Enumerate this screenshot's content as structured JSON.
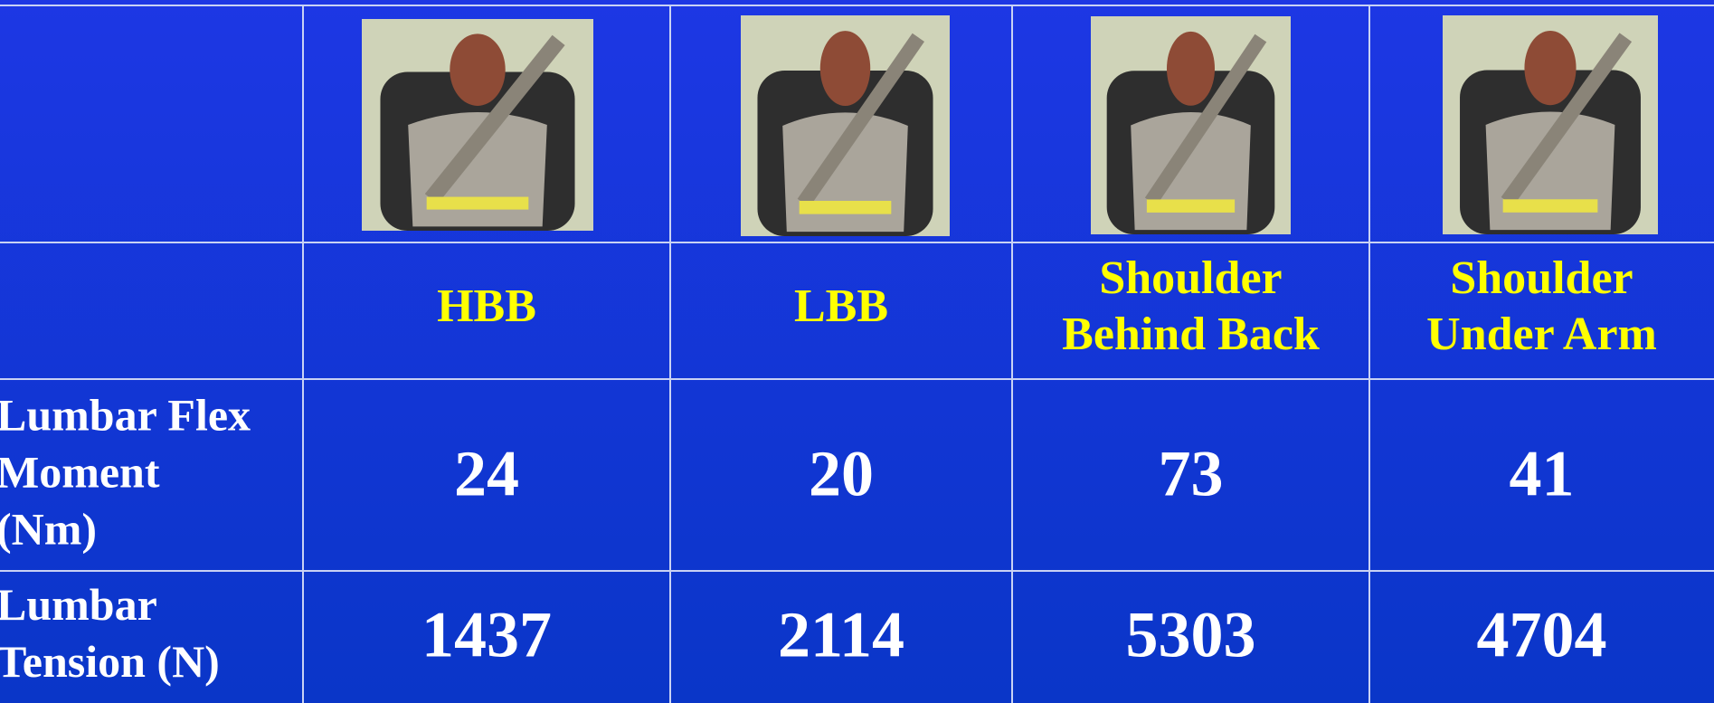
{
  "table": {
    "headers": [
      [
        "HBB"
      ],
      [
        "LBB"
      ],
      [
        "Shoulder",
        "Behind Back"
      ],
      [
        "Shoulder",
        "Under Arm"
      ]
    ],
    "rows": [
      {
        "label": [
          "Lumbar Flex",
          "Moment",
          "(Nm)"
        ],
        "values": [
          24,
          20,
          73,
          41
        ]
      },
      {
        "label": [
          "Lumbar",
          "Tension (N)"
        ],
        "values": [
          1437,
          2114,
          5303,
          4704
        ]
      }
    ]
  }
}
